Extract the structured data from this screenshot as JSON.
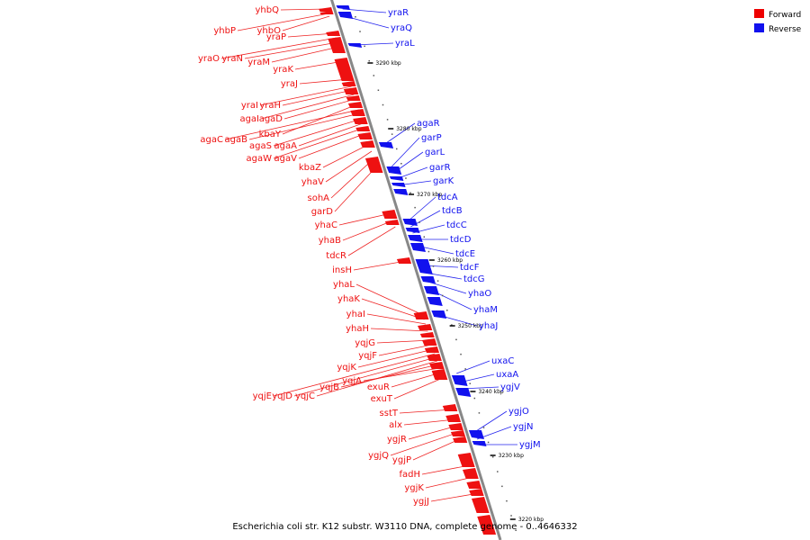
{
  "caption": "Escherichia coli str. K12 substr. W3110 DNA, complete genome - 0..4646332",
  "legend": {
    "forward": {
      "label": "Forward",
      "color": "#ee0000"
    },
    "reverse": {
      "label": "Reverse",
      "color": "#1111ee"
    }
  },
  "colors": {
    "forward": "#ee1111",
    "reverse": "#1111ee",
    "axis": "#888888",
    "leader_f": "#ee2222",
    "leader_r": "#2222ee"
  },
  "ticks": [
    "3290 kbp",
    "3280 kbp",
    "3270 kbp",
    "3260 kbp",
    "3250 kbp",
    "3240 kbp",
    "3230 kbp",
    "3220 kbp"
  ],
  "forward_labels": [
    "yhbQ",
    "yhbP",
    "yhbO",
    "yraP",
    "yraO",
    "yraN",
    "yraM",
    "yraK",
    "yraJ",
    "yraI",
    "yraH",
    "agaI",
    "agaD",
    "kbaY",
    "agaC",
    "agaB",
    "agaS",
    "agaA",
    "agaW",
    "agaV",
    "kbaZ",
    "yhaV",
    "sohA",
    "garD",
    "yhaC",
    "yhaB",
    "tdcR",
    "insH",
    "yhaL",
    "yhaK",
    "yhaI",
    "yhaH",
    "yqjG",
    "yqjF",
    "yqjK",
    "yqjE",
    "yqjD",
    "yqjC",
    "yqjB",
    "yqjA",
    "exuR",
    "exuT",
    "sstT",
    "alx",
    "ygjR",
    "ygjQ",
    "ygjP",
    "fadH",
    "ygjK",
    "ygjJ"
  ],
  "reverse_labels": [
    "yraR",
    "yraQ",
    "yraL",
    "agaR",
    "garP",
    "garL",
    "garR",
    "garK",
    "tdcA",
    "tdcB",
    "tdcC",
    "tdcD",
    "tdcE",
    "tdcF",
    "tdcG",
    "yhaO",
    "yhaM",
    "yhaJ",
    "uxaC",
    "uxaA",
    "ygjV",
    "ygjO",
    "ygjN",
    "ygjM"
  ]
}
